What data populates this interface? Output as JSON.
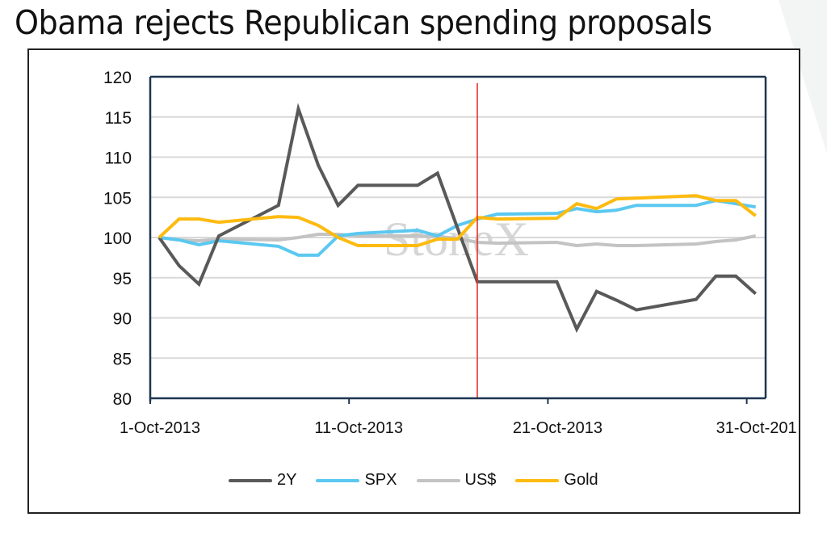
{
  "title": "Obama rejects Republican spending proposals",
  "watermark": "StoneX",
  "chart_data": {
    "type": "line",
    "title": "Obama rejects Republican spending proposals",
    "xlabel": "",
    "ylabel": "",
    "ylim": [
      80,
      120
    ],
    "yticks": [
      80,
      85,
      90,
      95,
      100,
      105,
      110,
      115,
      120
    ],
    "xlim_day": [
      0.55,
      31.5
    ],
    "xticks": [
      {
        "day": 1,
        "label": "1-Oct-2013"
      },
      {
        "day": 11,
        "label": "11-Oct-2013"
      },
      {
        "day": 21,
        "label": "21-Oct-2013"
      },
      {
        "day": 31,
        "label": "31-Oct-201"
      }
    ],
    "grid": true,
    "legend_position": "bottom",
    "annotation": {
      "type": "vertical-line",
      "day": 17,
      "color": "#e8312a",
      "label": ""
    },
    "x_days": [
      1,
      2,
      3,
      4,
      7,
      8,
      9,
      10,
      11,
      14,
      15,
      16,
      17,
      18,
      21,
      22,
      23,
      24,
      25,
      28,
      29,
      30,
      31
    ],
    "series": [
      {
        "name": "2Y",
        "color": "#595959",
        "values": [
          100,
          96.5,
          94.2,
          100.2,
          104,
          116,
          109,
          104,
          106.5,
          106.5,
          108,
          101.2,
          94.5,
          94.5,
          94.5,
          88.6,
          93.3,
          92.2,
          91,
          92.3,
          95.2,
          95.2,
          93
        ]
      },
      {
        "name": "SPX",
        "color": "#5bc8f0",
        "values": [
          100,
          99.7,
          99.1,
          99.6,
          98.9,
          97.8,
          97.8,
          100.2,
          100.5,
          100.9,
          100.2,
          101.5,
          102.3,
          102.9,
          103,
          103.6,
          103.2,
          103.4,
          104,
          104,
          104.6,
          104.2,
          103.8
        ]
      },
      {
        "name": "US$",
        "color": "#c3c3c3",
        "values": [
          100,
          99.7,
          99.6,
          99.8,
          99.7,
          100,
          100.4,
          100.4,
          100.2,
          100.2,
          100.1,
          99.9,
          99.4,
          99.3,
          99.4,
          99,
          99.2,
          99,
          99,
          99.2,
          99.5,
          99.7,
          100.2
        ]
      },
      {
        "name": "Gold",
        "color": "#fdbb10",
        "values": [
          100,
          102.3,
          102.3,
          101.9,
          102.6,
          102.5,
          101.5,
          100,
          99,
          99,
          99.8,
          99.8,
          102.5,
          102.3,
          102.4,
          104.2,
          103.6,
          104.8,
          104.9,
          105.2,
          104.6,
          104.6,
          102.7
        ]
      }
    ]
  }
}
